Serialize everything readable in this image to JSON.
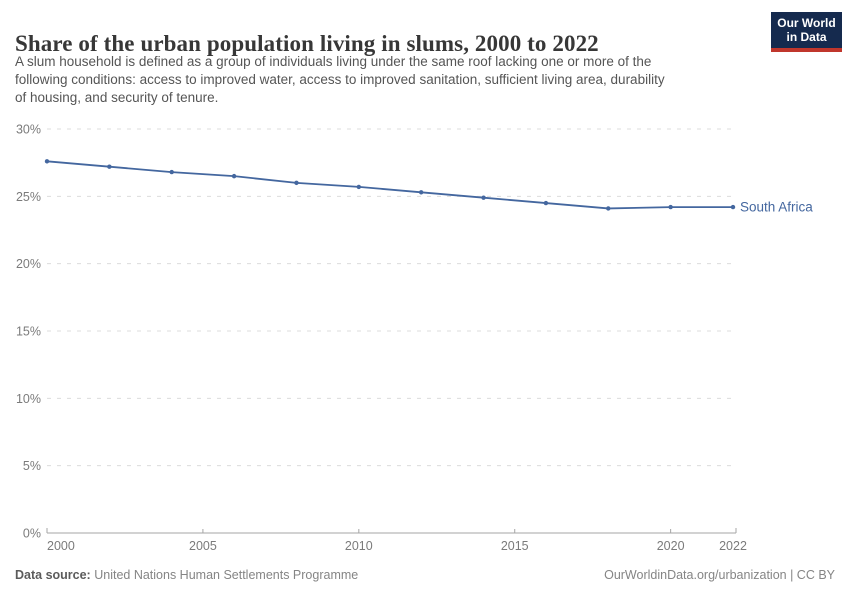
{
  "header": {
    "title": "Share of the urban population living in slums, 2000 to 2022",
    "subtitle_lines": [
      "A slum household is defined as a group of individuals living under the same roof lacking one or more of the",
      "following conditions: access to improved water, access to improved sanitation, sufficient living area, durability",
      "of housing, and security of tenure."
    ],
    "logo": {
      "line1": "Our World",
      "line2": "in Data"
    }
  },
  "chart_data": {
    "type": "line",
    "title": "Share of the urban population living in slums, 2000 to 2022",
    "x": [
      2000,
      2002,
      2004,
      2006,
      2008,
      2010,
      2012,
      2014,
      2016,
      2018,
      2020,
      2022
    ],
    "series": [
      {
        "name": "South Africa",
        "color": "#44679f",
        "values": [
          27.6,
          27.2,
          26.8,
          26.5,
          26.0,
          25.7,
          25.3,
          24.9,
          24.5,
          24.1,
          24.2,
          24.2
        ]
      }
    ],
    "xlabel": "",
    "ylabel": "",
    "xlim": [
      2000,
      2022
    ],
    "ylim": [
      0,
      30
    ],
    "yticks": [
      0,
      5,
      10,
      15,
      20,
      25,
      30
    ],
    "ytick_suffix": "%",
    "xticks": [
      2000,
      2005,
      2010,
      2015,
      2020,
      2022
    ],
    "grid": "horizontal-dashed",
    "legend_position": "end-of-line-label"
  },
  "footer": {
    "datasource_label": "Data source:",
    "datasource": "United Nations Human Settlements Programme",
    "link": "OurWorldinData.org/urbanization | CC BY"
  },
  "colors": {
    "line": "#44679f",
    "logo_bg": "#152a4e",
    "logo_accent": "#c0362c",
    "gridline": "#dcdcdc",
    "axis": "#a5a5a5",
    "tick_label": "#7b7b7b"
  }
}
